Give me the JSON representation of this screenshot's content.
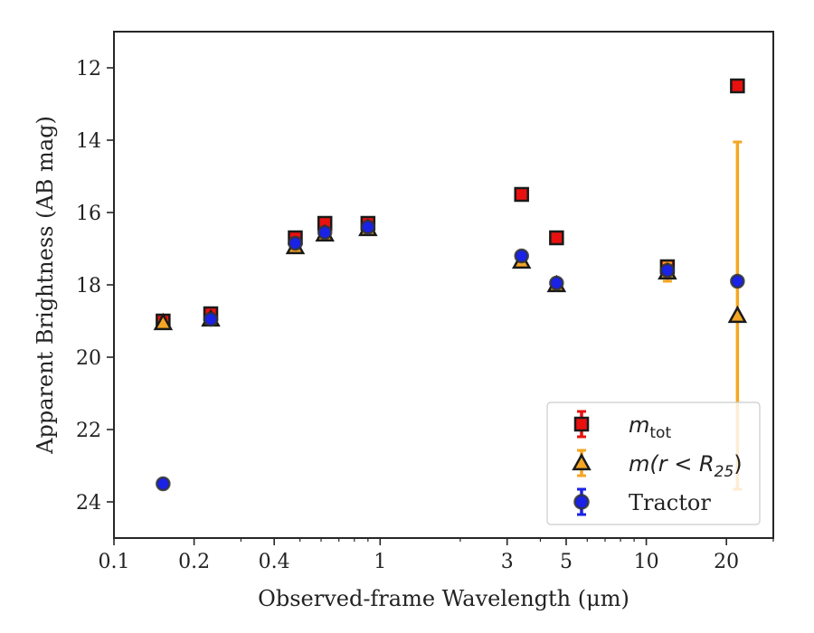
{
  "chart_data": {
    "type": "scatter",
    "xlabel": "Observed-frame Wavelength (μm)",
    "ylabel": "Apparent Brightness (AB mag)",
    "xscale": "log",
    "xlim": [
      0.1,
      30
    ],
    "ylim": [
      25,
      11
    ],
    "y_inverted": true,
    "x_ticks": [
      {
        "value": 0.1,
        "label": "0.1"
      },
      {
        "value": 0.2,
        "label": "0.2"
      },
      {
        "value": 0.4,
        "label": "0.4"
      },
      {
        "value": 1,
        "label": "1"
      },
      {
        "value": 3,
        "label": "3"
      },
      {
        "value": 5,
        "label": "5"
      },
      {
        "value": 10,
        "label": "10"
      },
      {
        "value": 20,
        "label": "20"
      }
    ],
    "y_ticks": [
      {
        "value": 12,
        "label": "12"
      },
      {
        "value": 14,
        "label": "14"
      },
      {
        "value": 16,
        "label": "16"
      },
      {
        "value": 18,
        "label": "18"
      },
      {
        "value": 20,
        "label": "20"
      },
      {
        "value": 22,
        "label": "22"
      },
      {
        "value": 24,
        "label": "24"
      }
    ],
    "grid": false,
    "legend": {
      "position": "bottom-right"
    },
    "series": [
      {
        "name": "m_tot",
        "label_main": "m",
        "label_sub": "tot",
        "marker": "square",
        "fill": "#e8110f",
        "edge": "#1a1a1a",
        "errcolor": "#e8110f",
        "points": [
          {
            "x": 0.153,
            "y": 19.0,
            "err": 0.05
          },
          {
            "x": 0.231,
            "y": 18.8,
            "err": 0.05
          },
          {
            "x": 0.48,
            "y": 16.7,
            "err": 0.05
          },
          {
            "x": 0.62,
            "y": 16.3,
            "err": 0.05
          },
          {
            "x": 0.9,
            "y": 16.3,
            "err": 0.05
          },
          {
            "x": 3.4,
            "y": 15.5,
            "err": 0.05
          },
          {
            "x": 4.6,
            "y": 16.7,
            "err": 0.05
          },
          {
            "x": 12.0,
            "y": 17.5,
            "err": 0.05
          },
          {
            "x": 22.0,
            "y": 12.5,
            "err": 0.05
          }
        ]
      },
      {
        "name": "m(r<R_25)",
        "label_main": "m(r < R",
        "label_sub": "25",
        "label_end": ")",
        "marker": "triangle",
        "fill": "#f5a623",
        "edge": "#1a1a1a",
        "errcolor": "#f5a623",
        "points": [
          {
            "x": 0.153,
            "y": 19.05,
            "err": 0.05
          },
          {
            "x": 0.231,
            "y": 18.95,
            "err": 0.05
          },
          {
            "x": 0.48,
            "y": 16.95,
            "err": 0.05
          },
          {
            "x": 0.62,
            "y": 16.6,
            "err": 0.05
          },
          {
            "x": 0.9,
            "y": 16.45,
            "err": 0.05
          },
          {
            "x": 3.4,
            "y": 17.35,
            "err": 0.05
          },
          {
            "x": 4.6,
            "y": 18.0,
            "err": 0.05
          },
          {
            "x": 12.0,
            "y": 17.65,
            "err": 0.25
          },
          {
            "x": 22.0,
            "y": 18.85,
            "err": 4.8
          }
        ]
      },
      {
        "name": "Tractor",
        "label_main": "Tractor",
        "marker": "circle",
        "fill": "#1a22e6",
        "edge": "#333333",
        "errcolor": "#1a22e6",
        "points": [
          {
            "x": 0.153,
            "y": 23.5,
            "err": 0.05
          },
          {
            "x": 0.231,
            "y": 18.95,
            "err": 0.05
          },
          {
            "x": 0.48,
            "y": 16.85,
            "err": 0.05
          },
          {
            "x": 0.62,
            "y": 16.55,
            "err": 0.05
          },
          {
            "x": 0.9,
            "y": 16.4,
            "err": 0.05
          },
          {
            "x": 3.4,
            "y": 17.2,
            "err": 0.05
          },
          {
            "x": 4.6,
            "y": 17.95,
            "err": 0.05
          },
          {
            "x": 12.0,
            "y": 17.6,
            "err": 0.05
          },
          {
            "x": 22.0,
            "y": 17.9,
            "err": 0.05
          }
        ]
      }
    ]
  }
}
